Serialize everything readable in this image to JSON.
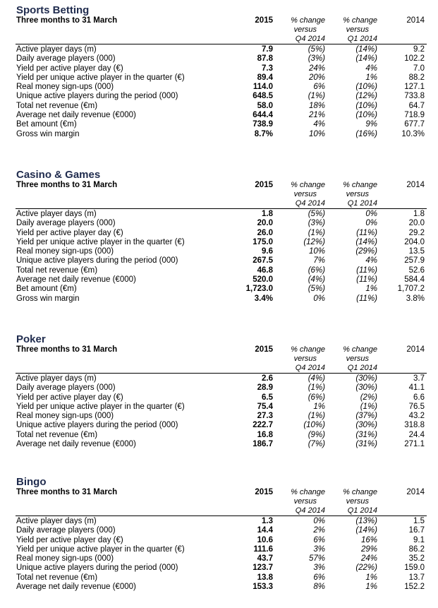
{
  "header_labels": {
    "col_2015": "2015",
    "col_2014": "2014",
    "chg_line1": "% change",
    "chg_line2": "versus",
    "chg_q4": "Q4 2014",
    "chg_q1": "Q1 2014"
  },
  "sections": [
    {
      "title": "Sports Betting",
      "subtitle": "Three months to 31 March",
      "rows": [
        {
          "label": "Active player days (m)",
          "v2015": "7.9",
          "vs_q4": "(5%)",
          "vs_q1": "(14%)",
          "v2014": "9.2"
        },
        {
          "label": "Daily average players (000)",
          "v2015": "87.8",
          "vs_q4": "(3%)",
          "vs_q1": "(14%)",
          "v2014": "102.2"
        },
        {
          "label": "Yield per active player day (€)",
          "v2015": "7.3",
          "vs_q4": "24%",
          "vs_q1": "4%",
          "v2014": "7.0"
        },
        {
          "label": "Yield per unique active player in the quarter (€)",
          "v2015": "89.4",
          "vs_q4": "20%",
          "vs_q1": "1%",
          "v2014": "88.2"
        },
        {
          "label": "Real money sign-ups (000)",
          "v2015": "114.0",
          "vs_q4": "6%",
          "vs_q1": "(10%)",
          "v2014": "127.1"
        },
        {
          "label": "Unique active players during the period (000)",
          "v2015": "648.5",
          "vs_q4": "(1%)",
          "vs_q1": "(12%)",
          "v2014": "733.8"
        },
        {
          "label": "Total net revenue (€m)",
          "v2015": "58.0",
          "vs_q4": "18%",
          "vs_q1": "(10%)",
          "v2014": "64.7"
        },
        {
          "label": "Average net daily revenue (€000)",
          "v2015": "644.4",
          "vs_q4": "21%",
          "vs_q1": "(10%)",
          "v2014": "718.9"
        },
        {
          "label": "Bet amount (€m)",
          "v2015": "738.9",
          "vs_q4": "4%",
          "vs_q1": "9%",
          "v2014": "677.7"
        },
        {
          "label": "Gross win margin",
          "v2015": "8.7%",
          "vs_q4": "10%",
          "vs_q1": "(16%)",
          "v2014": "10.3%"
        }
      ]
    },
    {
      "title": "Casino & Games",
      "subtitle": "Three months to 31 March",
      "rows": [
        {
          "label": "Active player days (m)",
          "v2015": "1.8",
          "vs_q4": "(5%)",
          "vs_q1": "0%",
          "v2014": "1.8"
        },
        {
          "label": "Daily average players (000)",
          "v2015": "20.0",
          "vs_q4": "(3%)",
          "vs_q1": "0%",
          "v2014": "20.0"
        },
        {
          "label": "Yield per active player day (€)",
          "v2015": "26.0",
          "vs_q4": "(1%)",
          "vs_q1": "(11%)",
          "v2014": "29.2"
        },
        {
          "label": "Yield per unique active player in the quarter (€)",
          "v2015": "175.0",
          "vs_q4": "(12%)",
          "vs_q1": "(14%)",
          "v2014": "204.0"
        },
        {
          "label": "Real money sign-ups (000)",
          "v2015": "9.6",
          "vs_q4": "10%",
          "vs_q1": "(29%)",
          "v2014": "13.5"
        },
        {
          "label": "Unique active players during the period (000)",
          "v2015": "267.5",
          "vs_q4": "7%",
          "vs_q1": "4%",
          "v2014": "257.9"
        },
        {
          "label": "Total net revenue (€m)",
          "v2015": "46.8",
          "vs_q4": "(6%)",
          "vs_q1": "(11%)",
          "v2014": "52.6"
        },
        {
          "label": "Average net daily revenue (€000)",
          "v2015": "520.0",
          "vs_q4": "(4%)",
          "vs_q1": "(11%)",
          "v2014": "584.4"
        },
        {
          "label": "Bet amount (€m)",
          "v2015": "1,723.0",
          "vs_q4": "(5%)",
          "vs_q1": "1%",
          "v2014": "1,707.2"
        },
        {
          "label": "Gross win margin",
          "v2015": "3.4%",
          "vs_q4": "0%",
          "vs_q1": "(11%)",
          "v2014": "3.8%"
        }
      ]
    },
    {
      "title": "Poker",
      "subtitle": "Three months to 31 March",
      "rows": [
        {
          "label": "Active player days (m)",
          "v2015": "2.6",
          "vs_q4": "(4%)",
          "vs_q1": "(30%)",
          "v2014": "3.7"
        },
        {
          "label": "Daily average players (000)",
          "v2015": "28.9",
          "vs_q4": "(1%)",
          "vs_q1": "(30%)",
          "v2014": "41.1"
        },
        {
          "label": "Yield per active player day (€)",
          "v2015": "6.5",
          "vs_q4": "(6%)",
          "vs_q1": "(2%)",
          "v2014": "6.6"
        },
        {
          "label": "Yield per unique active player in the quarter (€)",
          "v2015": "75.4",
          "vs_q4": "1%",
          "vs_q1": "(1%)",
          "v2014": "76.5"
        },
        {
          "label": "Real money sign-ups (000)",
          "v2015": "27.3",
          "vs_q4": "(1%)",
          "vs_q1": "(37%)",
          "v2014": "43.2"
        },
        {
          "label": "Unique active players during the period (000)",
          "v2015": "222.7",
          "vs_q4": "(10%)",
          "vs_q1": "(30%)",
          "v2014": "318.8"
        },
        {
          "label": "Total net revenue (€m)",
          "v2015": "16.8",
          "vs_q4": "(9%)",
          "vs_q1": "(31%)",
          "v2014": "24.4"
        },
        {
          "label": "Average net daily revenue (€000)",
          "v2015": "186.7",
          "vs_q4": "(7%)",
          "vs_q1": "(31%)",
          "v2014": "271.1"
        }
      ]
    },
    {
      "title": "Bingo",
      "subtitle": "Three months to 31 March",
      "rows": [
        {
          "label": "Active player days (m)",
          "v2015": "1.3",
          "vs_q4": "0%",
          "vs_q1": "(13%)",
          "v2014": "1.5"
        },
        {
          "label": "Daily average players (000)",
          "v2015": "14.4",
          "vs_q4": "2%",
          "vs_q1": "(14%)",
          "v2014": "16.7"
        },
        {
          "label": "Yield per active player day (€)",
          "v2015": "10.6",
          "vs_q4": "6%",
          "vs_q1": "16%",
          "v2014": "9.1"
        },
        {
          "label": "Yield per unique active player in the quarter (€)",
          "v2015": "111.6",
          "vs_q4": "3%",
          "vs_q1": "29%",
          "v2014": "86.2"
        },
        {
          "label": "Real money sign-ups (000)",
          "v2015": "43.7",
          "vs_q4": "57%",
          "vs_q1": "24%",
          "v2014": "35.2"
        },
        {
          "label": "Unique active players during the period (000)",
          "v2015": "123.7",
          "vs_q4": "3%",
          "vs_q1": "(22%)",
          "v2014": "159.0"
        },
        {
          "label": "Total net revenue (€m)",
          "v2015": "13.8",
          "vs_q4": "6%",
          "vs_q1": "1%",
          "v2014": "13.7"
        },
        {
          "label": "Average net daily revenue (€000)",
          "v2015": "153.3",
          "vs_q4": "8%",
          "vs_q1": "1%",
          "v2014": "152.2"
        }
      ]
    }
  ]
}
